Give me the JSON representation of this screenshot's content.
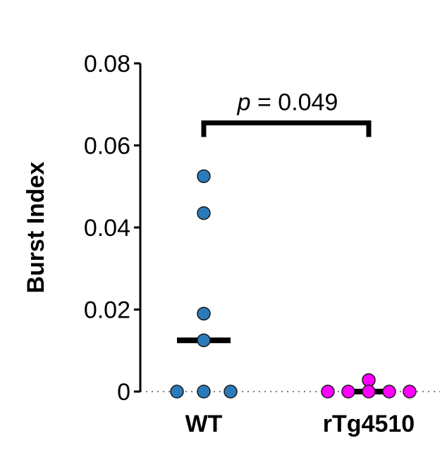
{
  "chart_data": {
    "type": "scatter",
    "subtype": "dot-plot-with-median",
    "ylabel": "Burst Index",
    "xlabel": "",
    "ylim": [
      0,
      0.08
    ],
    "yticks": [
      {
        "value": 0,
        "label": "0"
      },
      {
        "value": 0.02,
        "label": "0.02"
      },
      {
        "value": 0.04,
        "label": "0.04"
      },
      {
        "value": 0.06,
        "label": "0.06"
      },
      {
        "value": 0.08,
        "label": "0.08"
      }
    ],
    "categories": [
      "WT",
      "rTg4510"
    ],
    "baseline": {
      "value": 0,
      "style": "dotted",
      "color": "#808080"
    },
    "groups": [
      {
        "name": "WT",
        "color": "#2b7bba",
        "points": [
          {
            "slot": 0,
            "y": 0.0525
          },
          {
            "slot": 0,
            "y": 0.0435
          },
          {
            "slot": 0,
            "y": 0.019
          },
          {
            "slot": 0,
            "y": 0.0125
          },
          {
            "slot": -1,
            "y": 0
          },
          {
            "slot": 0,
            "y": 0
          },
          {
            "slot": 1,
            "y": 0
          }
        ],
        "median": 0.0125
      },
      {
        "name": "rTg4510",
        "color": "#ff00ff",
        "points": [
          {
            "slot": 0,
            "y": 0.0028
          },
          {
            "slot": -2,
            "y": 0
          },
          {
            "slot": -1,
            "y": 0
          },
          {
            "slot": 0,
            "y": 0
          },
          {
            "slot": 1,
            "y": 0
          },
          {
            "slot": 2,
            "y": 0
          }
        ],
        "median": 0
      }
    ],
    "significance": {
      "p_prefix": "p",
      "p_suffix": " = 0.049",
      "between": [
        "WT",
        "rTg4510"
      ],
      "bracket_y": 0.0655
    }
  }
}
